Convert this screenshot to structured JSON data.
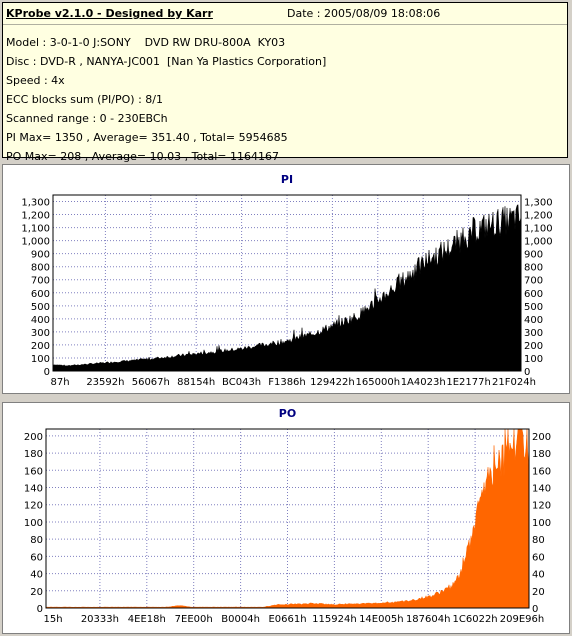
{
  "info": {
    "title": "KProbe v2.1.0 - Designed by Karr",
    "date": "Date : 2005/08/09 18:08:06",
    "lines": [
      "Model : 3-0-1-0 J:SONY    DVD RW DRU-800A  KY03",
      "Disc : DVD-R , NANYA-JC001  [Nan Ya Plastics Corporation]",
      "Speed : 4x",
      "ECC blocks sum (PI/PO) : 8/1",
      "Scanned range : 0 - 230EBCh",
      "PI Max= 1350 , Average= 351.40 , Total= 5954685",
      "PO Max= 208 , Average= 10.03 , Total= 1164167"
    ]
  },
  "colors": {
    "pi": "#000000",
    "po": "#ff6600",
    "title": "#000080",
    "grid": "#8080c0"
  },
  "chart_data": [
    {
      "type": "area",
      "title": "PI",
      "ylim": [
        0,
        1350
      ],
      "yticks": [
        0,
        100,
        200,
        300,
        400,
        500,
        600,
        700,
        800,
        900,
        1000,
        1100,
        1200,
        1300
      ],
      "ytick_labels": [
        "0",
        "100",
        "200",
        "300",
        "400",
        "500",
        "600",
        "700",
        "800",
        "900",
        "1,000",
        "1,100",
        "1,200",
        "1,300"
      ],
      "xtick_labels": [
        "87h",
        "23592h",
        "56067h",
        "88154h",
        "BC043h",
        "F1386h",
        "129422h",
        "165000h",
        "1A4023h",
        "1E2177h",
        "21F024h"
      ],
      "profile": [
        [
          0,
          50
        ],
        [
          0.03,
          40
        ],
        [
          0.1,
          60
        ],
        [
          0.2,
          90
        ],
        [
          0.3,
          130
        ],
        [
          0.4,
          170
        ],
        [
          0.5,
          230
        ],
        [
          0.55,
          280
        ],
        [
          0.6,
          350
        ],
        [
          0.65,
          420
        ],
        [
          0.7,
          560
        ],
        [
          0.75,
          700
        ],
        [
          0.8,
          850
        ],
        [
          0.85,
          950
        ],
        [
          0.9,
          1080
        ],
        [
          0.95,
          1140
        ],
        [
          1,
          1180
        ]
      ],
      "spike": 0.1
    },
    {
      "type": "area",
      "title": "PO",
      "ylim": [
        0,
        208
      ],
      "yticks": [
        0,
        20,
        40,
        60,
        80,
        100,
        120,
        140,
        160,
        180,
        200
      ],
      "ytick_labels": [
        "0",
        "20",
        "40",
        "60",
        "80",
        "100",
        "120",
        "140",
        "160",
        "180",
        "200"
      ],
      "xtick_labels": [
        "15h",
        "20333h",
        "4EE18h",
        "7EE00h",
        "B0004h",
        "E0661h",
        "115924h",
        "14E005h",
        "187604h",
        "1C6022h",
        "209E96h"
      ],
      "profile": [
        [
          0,
          1
        ],
        [
          0.25,
          1
        ],
        [
          0.28,
          3
        ],
        [
          0.3,
          1
        ],
        [
          0.45,
          1
        ],
        [
          0.48,
          4
        ],
        [
          0.55,
          5
        ],
        [
          0.6,
          4
        ],
        [
          0.7,
          6
        ],
        [
          0.75,
          8
        ],
        [
          0.8,
          14
        ],
        [
          0.84,
          25
        ],
        [
          0.86,
          40
        ],
        [
          0.88,
          80
        ],
        [
          0.9,
          130
        ],
        [
          0.92,
          160
        ],
        [
          0.95,
          180
        ],
        [
          0.98,
          190
        ],
        [
          1,
          195
        ]
      ],
      "spike": 0.15
    }
  ]
}
